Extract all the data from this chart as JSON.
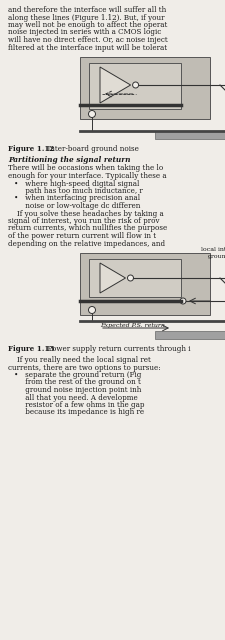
{
  "bg_color": "#f0ede8",
  "text_color": "#1a1a1a",
  "fig_width": 2.26,
  "fig_height": 6.4,
  "dpi": 100,
  "para1_lines": [
    "and therefore the interface will suffer all th",
    "along these lines (Figure 1.12). But, if your",
    "may well not be enough to affect the operat",
    "noise injected in series with a CMOS logic",
    "will have no direct effect. Or, ac noise inject",
    "filtered at the interface input will be tolerat"
  ],
  "fig1_caption_bold": "Figure 1.12",
  "fig1_caption_rest": "  Inter-board ground noise",
  "section_italic": "Partitioning the signal return",
  "para2_lines": [
    "There will be occasions when taking the lo",
    "enough for your interface. Typically these a"
  ],
  "bullet1_lines": [
    "•   where high-speed digital signal",
    "     path has too much inductance, r"
  ],
  "bullet2_lines": [
    "•   when interfacing precision anal",
    "     noise or low-voltage dc differen"
  ],
  "para3_lines": [
    "    If you solve these headaches by taking a",
    "signal of interest, you run the risk of prov",
    "return currents, which nullifies the purpose",
    "of the power return current will flow in t",
    "depending on the relative impedances, and"
  ],
  "fig2_label_local": "local int",
  "fig2_label_groun": "groun",
  "fig2_caption_bold": "Figure 1.13",
  "fig2_caption_rest": "  Power supply return currents through i",
  "para4_lines": [
    "    If you really need the local signal ret",
    "currents, there are two options to pursue:"
  ],
  "bullet3_lines": [
    "•   separate the ground return (Fig",
    "     from the rest of the ground on t",
    "     ground noise injection point inh",
    "     all that you need. A developme",
    "     resistor of a few ohms in the gap",
    "     because its impedance is high re"
  ],
  "board_gray": "#c0bcb4",
  "ic_gray": "#d0ccc4",
  "tri_fill": "#e0dcd4",
  "pcb_gray": "#a0a0a0",
  "line_color": "#333333",
  "rail_color": "#444444"
}
